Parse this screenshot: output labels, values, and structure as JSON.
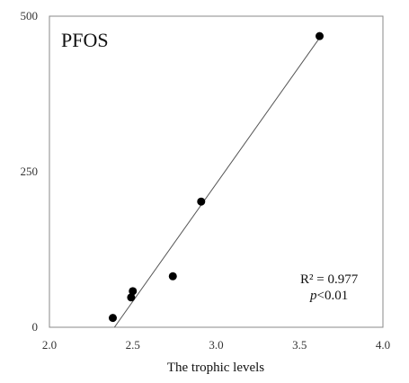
{
  "chart_data": {
    "type": "scatter",
    "panel_label": "PFOS",
    "xlabel": "The trophic levels",
    "ylabel": "",
    "xlim": [
      2.0,
      4.0
    ],
    "ylim": [
      0,
      500
    ],
    "x_ticks": [
      "2.0",
      "2.5",
      "3.0",
      "3.5",
      "4.0"
    ],
    "y_ticks": [
      "0",
      "250",
      "500"
    ],
    "x_tick_values": [
      2.0,
      2.5,
      3.0,
      3.5,
      4.0
    ],
    "y_tick_values": [
      0,
      250,
      500
    ],
    "grid": false,
    "points": [
      {
        "x": 2.38,
        "y": 15
      },
      {
        "x": 2.49,
        "y": 48
      },
      {
        "x": 2.5,
        "y": 58
      },
      {
        "x": 2.74,
        "y": 82
      },
      {
        "x": 2.91,
        "y": 202
      },
      {
        "x": 3.62,
        "y": 468
      }
    ],
    "trendline": {
      "x": [
        2.39,
        3.62
      ],
      "y": [
        0,
        465
      ]
    },
    "annotations": {
      "r2_label": "R² = 0.977",
      "p_label_italic": "p",
      "p_label_rest": "<0.01"
    },
    "colors": {
      "points": "#000000",
      "line": "#555555",
      "frame": "#888888"
    }
  }
}
